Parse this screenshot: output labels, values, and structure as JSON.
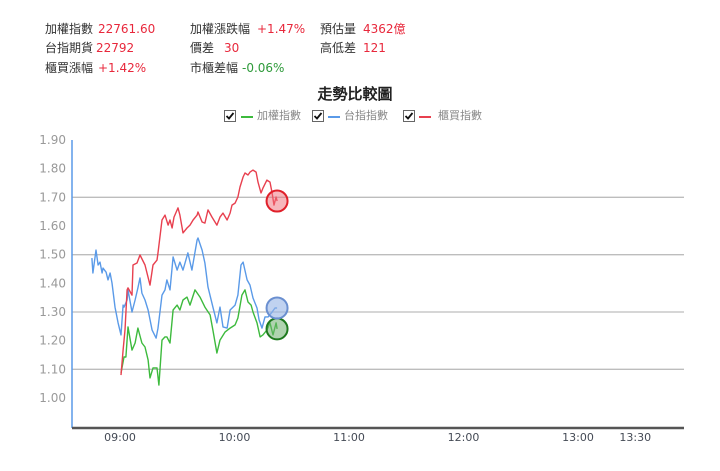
{
  "header": {
    "stats": [
      {
        "label": "加權指數",
        "value": "22761.60",
        "tone": "up"
      },
      {
        "label": "台指期貨",
        "value": "22792",
        "tone": "up"
      },
      {
        "label": "櫃買漲幅",
        "value": "+1.42%",
        "tone": "up"
      },
      {
        "label": "加權漲跌幅",
        "value": "+1.47%",
        "tone": "up"
      },
      {
        "label": "價差",
        "value": "30",
        "tone": "up"
      },
      {
        "label": "市櫃差幅",
        "value": "-0.06%",
        "tone": "down"
      },
      {
        "label": "預估量",
        "value": "4362億",
        "tone": "up"
      },
      {
        "label": "高低差",
        "value": "121",
        "tone": "up"
      }
    ]
  },
  "colors": {
    "up": "#e8283c",
    "down": "#2e9a3a",
    "grid": "#bdbdbd",
    "y_axis": "#5a9ae8",
    "x_axis": "#555555"
  },
  "chart_data": {
    "type": "line",
    "title": "走勢比較圖",
    "xlabel": "",
    "ylabel": "",
    "x_origin": "09:00",
    "x_unit": "minutes",
    "x_ticks": [
      "09:00",
      "10:00",
      "11:00",
      "12:00",
      "13:00",
      "13:30"
    ],
    "y_ticks": [
      "1.90",
      "1.80",
      "1.70",
      "1.60",
      "1.50",
      "1.40",
      "1.30",
      "1.20",
      "1.10",
      "1.00"
    ],
    "ylim": [
      1.0,
      1.9
    ],
    "grid_lines": [
      1.7,
      1.5,
      1.3,
      1.1
    ],
    "legend": {
      "position": "top-center"
    },
    "series": [
      {
        "name": "加權指數",
        "color": "#3dba3d",
        "marker_stroke": "#1e7a1e",
        "marker_fill": "rgba(110,175,110,0.55)",
        "points": [
          [
            0.5,
            1.087
          ],
          [
            2.1,
            1.143
          ],
          [
            3.1,
            1.143
          ],
          [
            4.2,
            1.248
          ],
          [
            6.3,
            1.167
          ],
          [
            7.9,
            1.192
          ],
          [
            9.4,
            1.244
          ],
          [
            11.5,
            1.192
          ],
          [
            13.1,
            1.178
          ],
          [
            14.7,
            1.133
          ],
          [
            15.7,
            1.07
          ],
          [
            17.3,
            1.105
          ],
          [
            19.4,
            1.105
          ],
          [
            20.4,
            1.045
          ],
          [
            22.0,
            1.202
          ],
          [
            23.6,
            1.213
          ],
          [
            24.6,
            1.213
          ],
          [
            26.2,
            1.192
          ],
          [
            27.8,
            1.307
          ],
          [
            29.9,
            1.324
          ],
          [
            31.4,
            1.307
          ],
          [
            33.0,
            1.342
          ],
          [
            35.1,
            1.352
          ],
          [
            36.7,
            1.324
          ],
          [
            39.3,
            1.377
          ],
          [
            41.9,
            1.352
          ],
          [
            44.5,
            1.317
          ],
          [
            47.2,
            1.29
          ],
          [
            48.7,
            1.237
          ],
          [
            50.8,
            1.157
          ],
          [
            52.4,
            1.202
          ],
          [
            55.0,
            1.23
          ],
          [
            57.7,
            1.244
          ],
          [
            60.3,
            1.255
          ],
          [
            61.8,
            1.279
          ],
          [
            63.9,
            1.359
          ],
          [
            65.5,
            1.377
          ],
          [
            67.1,
            1.335
          ],
          [
            68.7,
            1.324
          ],
          [
            69.7,
            1.3
          ],
          [
            71.8,
            1.262
          ],
          [
            73.4,
            1.213
          ],
          [
            74.9,
            1.22
          ],
          [
            77.0,
            1.237
          ],
          [
            78.6,
            1.262
          ],
          [
            80.2,
            1.22
          ],
          [
            81.8,
            1.262
          ],
          [
            82.3,
            1.241
          ]
        ]
      },
      {
        "name": "台指指數",
        "color": "#5a9ae8",
        "marker_stroke": "#6a8fd0",
        "marker_fill": "rgba(150,180,230,0.6)",
        "points": [
          [
            -14.7,
            1.488
          ],
          [
            -14.2,
            1.436
          ],
          [
            -12.6,
            1.516
          ],
          [
            -11.5,
            1.464
          ],
          [
            -10.5,
            1.474
          ],
          [
            -9.4,
            1.436
          ],
          [
            -8.9,
            1.453
          ],
          [
            -7.3,
            1.439
          ],
          [
            -6.3,
            1.412
          ],
          [
            -5.2,
            1.436
          ],
          [
            -4.2,
            1.401
          ],
          [
            -2.6,
            1.317
          ],
          [
            -1.0,
            1.262
          ],
          [
            0.5,
            1.22
          ],
          [
            1.6,
            1.324
          ],
          [
            2.1,
            1.317
          ],
          [
            3.7,
            1.342
          ],
          [
            4.2,
            1.377
          ],
          [
            6.3,
            1.3
          ],
          [
            7.9,
            1.342
          ],
          [
            9.4,
            1.384
          ],
          [
            10.5,
            1.419
          ],
          [
            11.5,
            1.366
          ],
          [
            13.1,
            1.342
          ],
          [
            14.7,
            1.307
          ],
          [
            16.8,
            1.237
          ],
          [
            18.9,
            1.209
          ],
          [
            19.9,
            1.244
          ],
          [
            22.0,
            1.359
          ],
          [
            23.6,
            1.377
          ],
          [
            24.6,
            1.412
          ],
          [
            26.2,
            1.377
          ],
          [
            27.8,
            1.492
          ],
          [
            29.9,
            1.446
          ],
          [
            31.4,
            1.474
          ],
          [
            33.0,
            1.446
          ],
          [
            35.6,
            1.506
          ],
          [
            37.7,
            1.446
          ],
          [
            40.4,
            1.551
          ],
          [
            40.9,
            1.558
          ],
          [
            43.0,
            1.516
          ],
          [
            44.5,
            1.471
          ],
          [
            46.1,
            1.387
          ],
          [
            48.7,
            1.317
          ],
          [
            50.8,
            1.262
          ],
          [
            52.4,
            1.317
          ],
          [
            54.0,
            1.248
          ],
          [
            56.1,
            1.244
          ],
          [
            57.7,
            1.307
          ],
          [
            60.3,
            1.324
          ],
          [
            61.8,
            1.359
          ],
          [
            63.4,
            1.464
          ],
          [
            64.5,
            1.474
          ],
          [
            66.6,
            1.412
          ],
          [
            68.1,
            1.394
          ],
          [
            69.7,
            1.349
          ],
          [
            71.8,
            1.314
          ],
          [
            72.9,
            1.272
          ],
          [
            74.4,
            1.244
          ],
          [
            76.0,
            1.283
          ],
          [
            77.6,
            1.283
          ],
          [
            79.7,
            1.3
          ],
          [
            81.2,
            1.314
          ],
          [
            82.3,
            1.314
          ]
        ]
      },
      {
        "name": "櫃買指數",
        "color": "#e8404f",
        "marker_stroke": "#e0202a",
        "marker_fill": "rgba(240,110,120,0.5)",
        "points": [
          [
            0.5,
            1.08
          ],
          [
            1.6,
            1.167
          ],
          [
            2.6,
            1.237
          ],
          [
            3.7,
            1.377
          ],
          [
            4.2,
            1.384
          ],
          [
            6.3,
            1.359
          ],
          [
            6.8,
            1.464
          ],
          [
            8.9,
            1.471
          ],
          [
            10.5,
            1.499
          ],
          [
            13.1,
            1.464
          ],
          [
            15.7,
            1.394
          ],
          [
            17.3,
            1.464
          ],
          [
            19.4,
            1.481
          ],
          [
            19.9,
            1.506
          ],
          [
            22.0,
            1.621
          ],
          [
            23.6,
            1.638
          ],
          [
            25.2,
            1.603
          ],
          [
            26.2,
            1.621
          ],
          [
            27.3,
            1.593
          ],
          [
            28.3,
            1.631
          ],
          [
            30.4,
            1.663
          ],
          [
            31.4,
            1.638
          ],
          [
            33.0,
            1.576
          ],
          [
            35.1,
            1.593
          ],
          [
            36.7,
            1.603
          ],
          [
            38.3,
            1.621
          ],
          [
            40.4,
            1.638
          ],
          [
            40.9,
            1.649
          ],
          [
            43.0,
            1.614
          ],
          [
            44.5,
            1.61
          ],
          [
            46.1,
            1.656
          ],
          [
            48.2,
            1.631
          ],
          [
            50.8,
            1.603
          ],
          [
            52.4,
            1.631
          ],
          [
            54.0,
            1.645
          ],
          [
            56.1,
            1.621
          ],
          [
            57.7,
            1.645
          ],
          [
            58.7,
            1.673
          ],
          [
            60.3,
            1.68
          ],
          [
            61.8,
            1.701
          ],
          [
            62.9,
            1.736
          ],
          [
            64.5,
            1.771
          ],
          [
            65.5,
            1.785
          ],
          [
            67.1,
            1.778
          ],
          [
            68.1,
            1.788
          ],
          [
            69.7,
            1.795
          ],
          [
            71.3,
            1.788
          ],
          [
            72.3,
            1.753
          ],
          [
            73.9,
            1.715
          ],
          [
            74.9,
            1.732
          ],
          [
            77.0,
            1.76
          ],
          [
            78.6,
            1.753
          ],
          [
            79.7,
            1.715
          ],
          [
            80.7,
            1.673
          ],
          [
            81.8,
            1.701
          ],
          [
            82.3,
            1.687
          ]
        ]
      }
    ]
  }
}
